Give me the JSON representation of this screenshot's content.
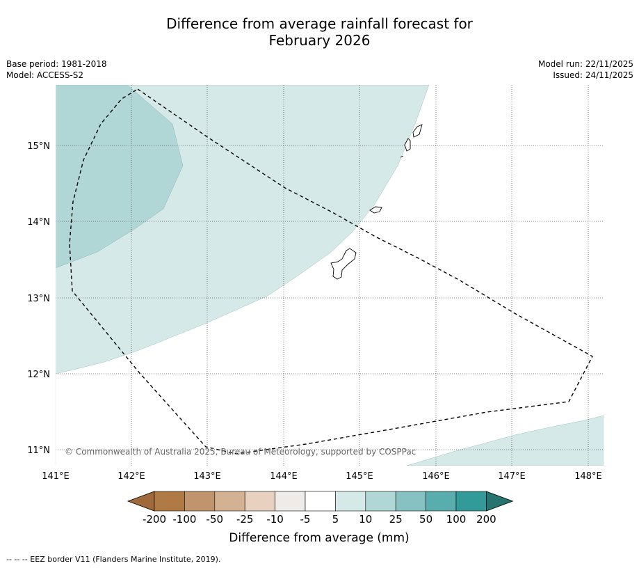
{
  "title_line1": "Difference from average rainfall forecast for",
  "title_line2": "February 2026",
  "base_period": "Base period: 1981-2018",
  "model": "Model: ACCESS-S2",
  "model_run": "Model run: 22/11/2025",
  "issued": "Issued: 24/11/2025",
  "copyright": "© Commonwealth of Australia 2025, Bureau of Meteorology, supported by COSPPac",
  "footer_note": "--  --  -- EEZ border V11 (Flanders Marine Institute, 2019).",
  "lon_labels": [
    "141°E",
    "142°E",
    "143°E",
    "144°E",
    "145°E",
    "146°E",
    "147°E",
    "148°E"
  ],
  "lat_labels": [
    "15°N",
    "14°N",
    "13°N",
    "12°N",
    "11°N"
  ],
  "colorbar": {
    "title": "Difference from average (mm)",
    "ticks": [
      "-200",
      "-100",
      "-50",
      "-25",
      "-10",
      "-5",
      "5",
      "10",
      "25",
      "50",
      "100",
      "200"
    ],
    "colors": [
      "#a0693a",
      "#b07a44",
      "#c0946c",
      "#d4b192",
      "#e8d2bf",
      "#eeebe8",
      "#ffffff",
      "#d5e9e8",
      "#b0d6d6",
      "#86c2c2",
      "#5aadad",
      "#329a98",
      "#267370"
    ]
  },
  "colors": {
    "light_teal": "#d5e9e8",
    "mid_teal": "#b0d6d6",
    "land": "#ffffff",
    "grid": "#555555"
  }
}
